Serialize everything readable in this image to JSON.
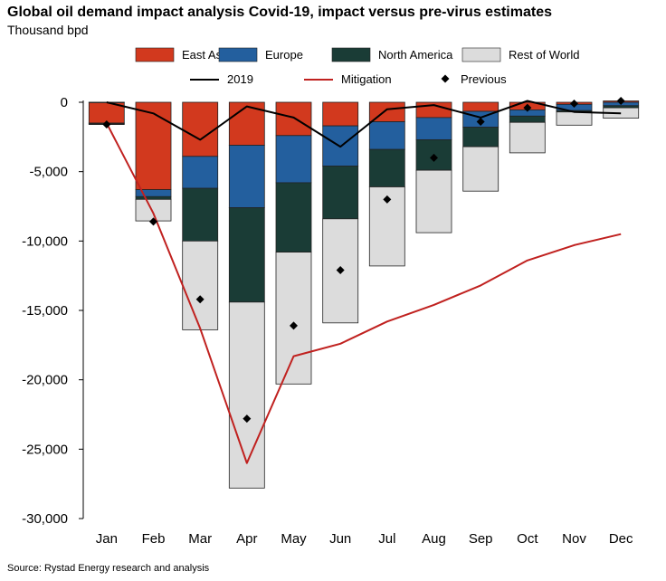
{
  "title": "Global oil demand impact analysis Covid-19, impact versus pre-virus estimates",
  "subtitle": "Thousand bpd",
  "source": "Source: Rystad Energy research and analysis",
  "chart_data": {
    "type": "bar",
    "stacked": true,
    "categories": [
      "Jan",
      "Feb",
      "Mar",
      "Apr",
      "May",
      "Jun",
      "Jul",
      "Aug",
      "Sep",
      "Oct",
      "Nov",
      "Dec"
    ],
    "ylim": [
      -30000,
      0
    ],
    "yticks": [
      0,
      -5000,
      -10000,
      -15000,
      -20000,
      -25000,
      -30000
    ],
    "ytick_labels": [
      "0",
      "-5,000",
      "-10,000",
      "-15,000",
      "-20,000",
      "-25,000",
      "-30,000"
    ],
    "grid": false,
    "legend_position": "top",
    "series": [
      {
        "name": "East Asia",
        "kind": "bar",
        "color": "#d2391e",
        "values": [
          -1500,
          -6300,
          -3900,
          -3100,
          -2400,
          -1700,
          -1400,
          -1100,
          -650,
          -550,
          -150,
          100
        ]
      },
      {
        "name": "Europe",
        "kind": "bar",
        "color": "#235f9e",
        "values": [
          -50,
          -500,
          -2300,
          -4500,
          -3400,
          -2900,
          -2000,
          -1600,
          -1150,
          -450,
          -450,
          -250
        ]
      },
      {
        "name": "North America",
        "kind": "bar",
        "color": "#1a3c36",
        "values": [
          -50,
          -200,
          -3800,
          -6800,
          -5000,
          -3800,
          -2700,
          -2200,
          -1400,
          -450,
          -100,
          -150
        ]
      },
      {
        "name": "Rest of World",
        "kind": "bar",
        "color": "#dcdcdc",
        "values": [
          0,
          -1550,
          -6400,
          -13400,
          -9500,
          -7500,
          -5700,
          -4500,
          -3200,
          -2200,
          -950,
          -750
        ]
      },
      {
        "name": "2019",
        "kind": "line",
        "color": "#000000",
        "values": [
          0,
          -800,
          -2700,
          -300,
          -1100,
          -3200,
          -500,
          -200,
          -1100,
          100,
          -700,
          -800
        ]
      },
      {
        "name": "Mitigation",
        "kind": "line",
        "color": "#c0211f",
        "values": [
          -1500,
          -8000,
          -16300,
          -26000,
          -18300,
          -17400,
          -15800,
          -14600,
          -13200,
          -11400,
          -10300,
          -9500
        ]
      },
      {
        "name": "Previous",
        "kind": "marker",
        "color": "#000000",
        "values": [
          -1600,
          -8600,
          -14200,
          -22800,
          -16100,
          -12100,
          -7000,
          -4000,
          -1400,
          -400,
          -100,
          100
        ]
      }
    ]
  }
}
